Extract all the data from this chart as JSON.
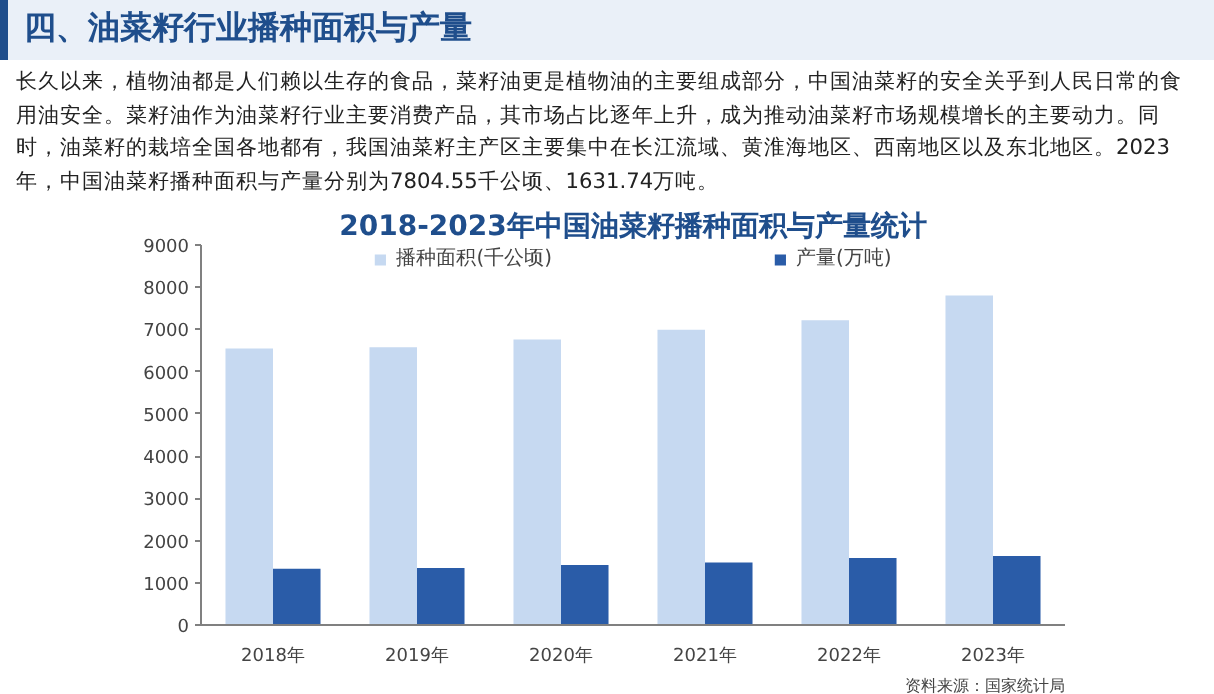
{
  "chart_data": {
    "type": "bar",
    "title": "2018-2023年中国油菜籽播种面积与产量统计",
    "annotations": [
      "四、油菜籽行业播种面积与产量",
      "长久以来，植物油都是人们赖以生存的食品，菜籽油更是植物油的主要组成部分，中国油菜籽的安全关乎到人民日常的食用油安全。菜籽油作为油菜籽行业主要消费产品，其市场占比逐年上升，成为推动油菜籽市场规模增长的主要动力。同时，油菜籽的栽培全国各地都有，我国油菜籽主产区主要集中在长江流域、黄淮海地区、西南地区以及东北地区。2023年，中国油菜籽播种面积与产量分别为7804.55千公顷、1631.74万吨。",
      "资料来源：国家统计局"
    ],
    "categories": [
      "2018年",
      "2019年",
      "2020年",
      "2021年",
      "2022年",
      "2023年"
    ],
    "series": [
      {
        "name": "播种面积(千公顷)",
        "color": "#c6d9f1",
        "values": [
          6550,
          6580,
          6760,
          6990,
          7220,
          7804.55
        ]
      },
      {
        "name": "产量(万吨)",
        "color": "#2a5ca8",
        "values": [
          1330,
          1350,
          1420,
          1480,
          1585,
          1631.74
        ]
      }
    ],
    "ylim": [
      0,
      9000
    ],
    "yticks": [
      0,
      1000,
      2000,
      3000,
      4000,
      5000,
      6000,
      7000,
      8000,
      9000
    ],
    "grid": false,
    "legend": "top"
  }
}
